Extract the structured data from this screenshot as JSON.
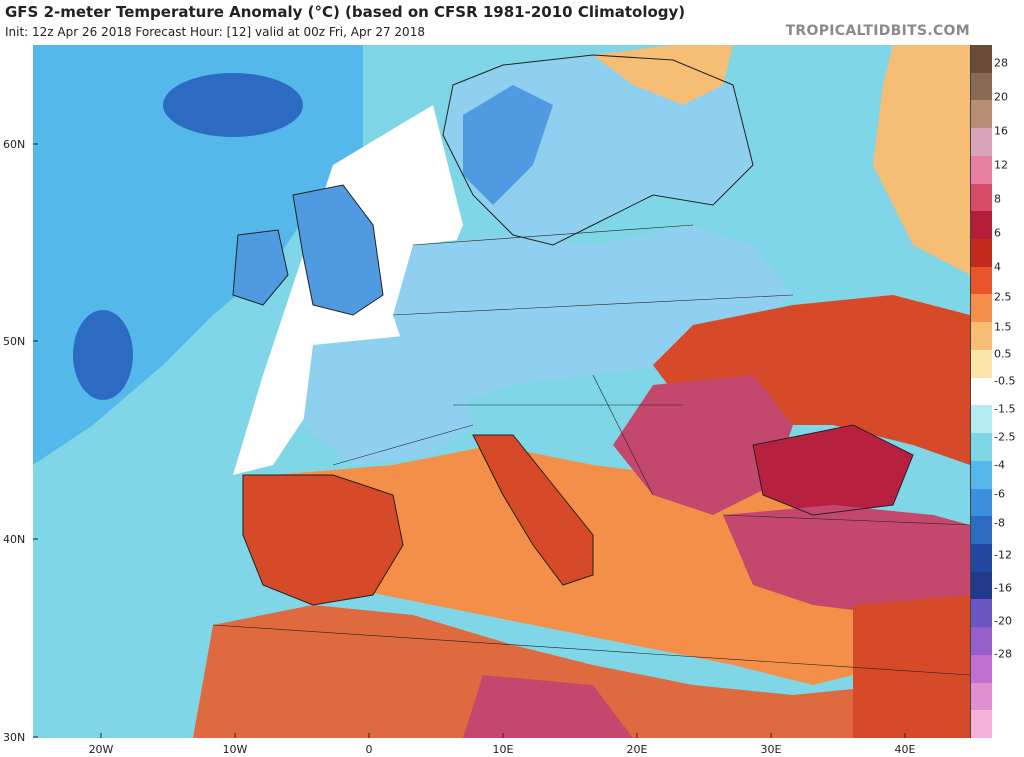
{
  "header": {
    "title": "GFS 2-meter Temperature Anomaly (°C) (based on CFSR 1981-2010 Climatology)",
    "subtitle": "Init: 12z Apr 26 2018   Forecast Hour: [12]   valid at 00z Fri, Apr 27 2018",
    "brand": "TROPICALTIDBITS.COM"
  },
  "axes": {
    "lat_labels": [
      "60N",
      "50N",
      "40N",
      "30N"
    ],
    "lon_labels": [
      "20W",
      "10W",
      "0",
      "10E",
      "20E",
      "30E",
      "40E"
    ]
  },
  "colorbar": {
    "labels": [
      "28",
      "20",
      "16",
      "12",
      "8",
      "6",
      "4",
      "2.5",
      "1.5",
      "0.5",
      "-0.5",
      "-1.5",
      "-2.5",
      "-4",
      "-6",
      "-8",
      "-12",
      "-16",
      "-20",
      "-28"
    ],
    "colors": [
      "#6b4a38",
      "#8a6a52",
      "#b88f75",
      "#d9a4ba",
      "#e67fa0",
      "#d64a6a",
      "#b31d37",
      "#c22a1b",
      "#e8552a",
      "#f48f4a",
      "#f6bd74",
      "#fae4a8",
      "#ffffff",
      "#b4ecf2",
      "#7fd6e6",
      "#55b8ea",
      "#3b8fdc",
      "#2d6bc2",
      "#2048a0",
      "#1f3a8a",
      "#6a55c2",
      "#9560cc",
      "#c070d0",
      "#e090d0",
      "#f4b2d8"
    ]
  },
  "map": {
    "colors": {
      "ocean": "#7fd6e6",
      "cold_ocean": "#55b8ea",
      "deep_cold": "#2d6bc2",
      "near_normal": "#ffffff",
      "cool_land": "#8fd0f0",
      "cold_land": "#4f9ae0",
      "warm_sea": "#f48f4a",
      "hot_land": "#d64a2a",
      "very_hot": "#b82040",
      "extreme": "#c4486e",
      "mild": "#f6bd74",
      "sahara": "#e06a40",
      "border": "#222222"
    }
  }
}
